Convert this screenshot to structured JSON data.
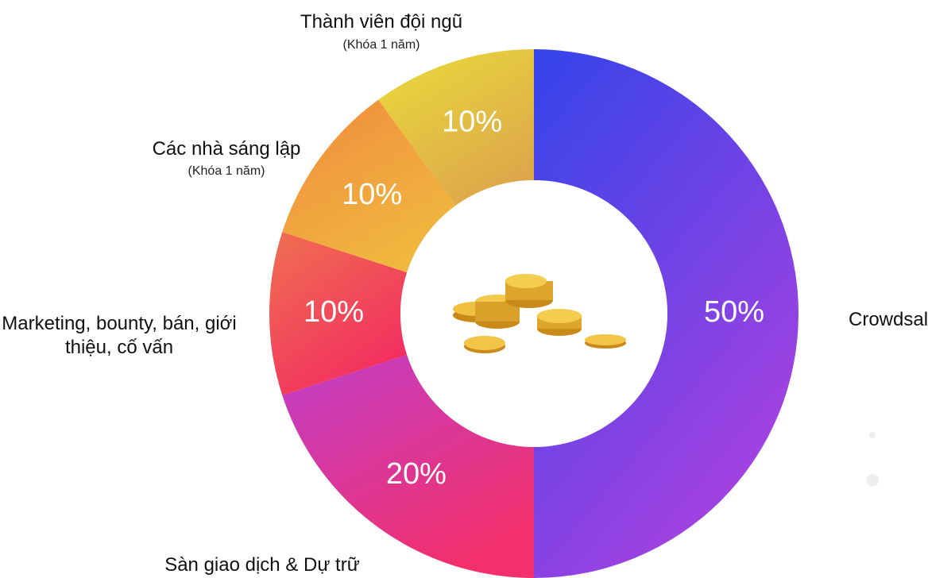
{
  "chart_data": {
    "type": "donut",
    "categories": [
      "Crowdsale",
      "Sàn giao dịch & Dự trữ",
      "Marketing, bounty, bán, giới thiệu, cố vấn",
      "Các nhà sáng lập",
      "Thành viên đội ngũ"
    ],
    "sublabels": [
      null,
      null,
      null,
      "(Khóa 1 năm)",
      "(Khóa 1 năm)"
    ],
    "values": [
      50,
      20,
      10,
      10,
      10
    ],
    "value_labels": [
      "50%",
      "20%",
      "10%",
      "10%",
      "10%"
    ],
    "colors": [
      [
        "#3344ea",
        "#a842e0"
      ],
      [
        "#c03ec8",
        "#f2306c"
      ],
      [
        "#f07050",
        "#f22e60"
      ],
      [
        "#f08a3e",
        "#f0b83e"
      ],
      [
        "#eadc3a",
        "#dda84a"
      ]
    ]
  }
}
